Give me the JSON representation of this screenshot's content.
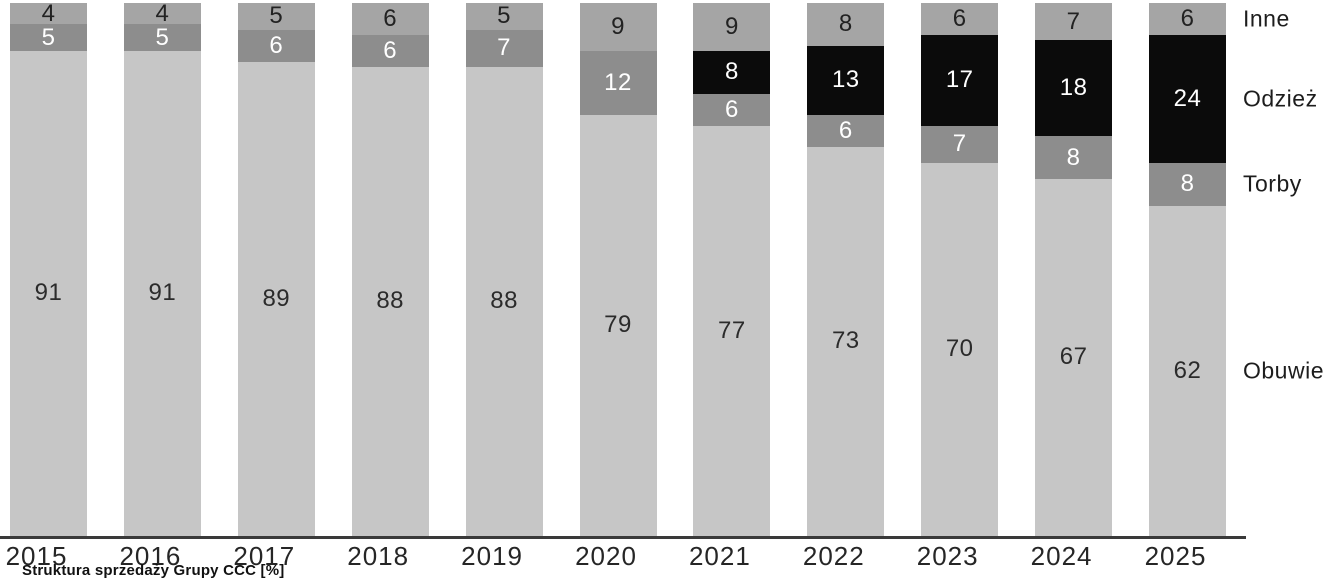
{
  "chart_data": {
    "type": "bar",
    "stacked": true,
    "title": "Struktura sprzedaży Grupy CCC [%]",
    "unit": "%",
    "categories": [
      "2015",
      "2016",
      "2017",
      "2018",
      "2019",
      "2020",
      "2021",
      "2022",
      "2023",
      "2024",
      "2025"
    ],
    "series": [
      {
        "name": "Obuwie",
        "color": "#c6c6c6",
        "label_color": "#2b2b2b",
        "values": [
          91,
          91,
          89,
          88,
          88,
          79,
          77,
          73,
          70,
          67,
          62
        ]
      },
      {
        "name": "Torby",
        "color": "#8d8d8d",
        "label_color": "#ffffff",
        "values": [
          5,
          5,
          6,
          6,
          7,
          12,
          6,
          6,
          7,
          8,
          8
        ]
      },
      {
        "name": "Odzież",
        "color": "#0b0b0b",
        "label_color": "#ffffff",
        "values": [
          0,
          0,
          0,
          0,
          0,
          0,
          8,
          13,
          17,
          18,
          24
        ]
      },
      {
        "name": "Inne",
        "color": "#a5a5a5",
        "label_color": "#222222",
        "values": [
          4,
          4,
          5,
          6,
          5,
          9,
          9,
          8,
          6,
          7,
          6
        ]
      }
    ],
    "ylim": [
      0,
      100
    ],
    "grid": false,
    "legend_position": "right",
    "axis_color": "#3a3a3a",
    "background_color": "#ffffff"
  }
}
